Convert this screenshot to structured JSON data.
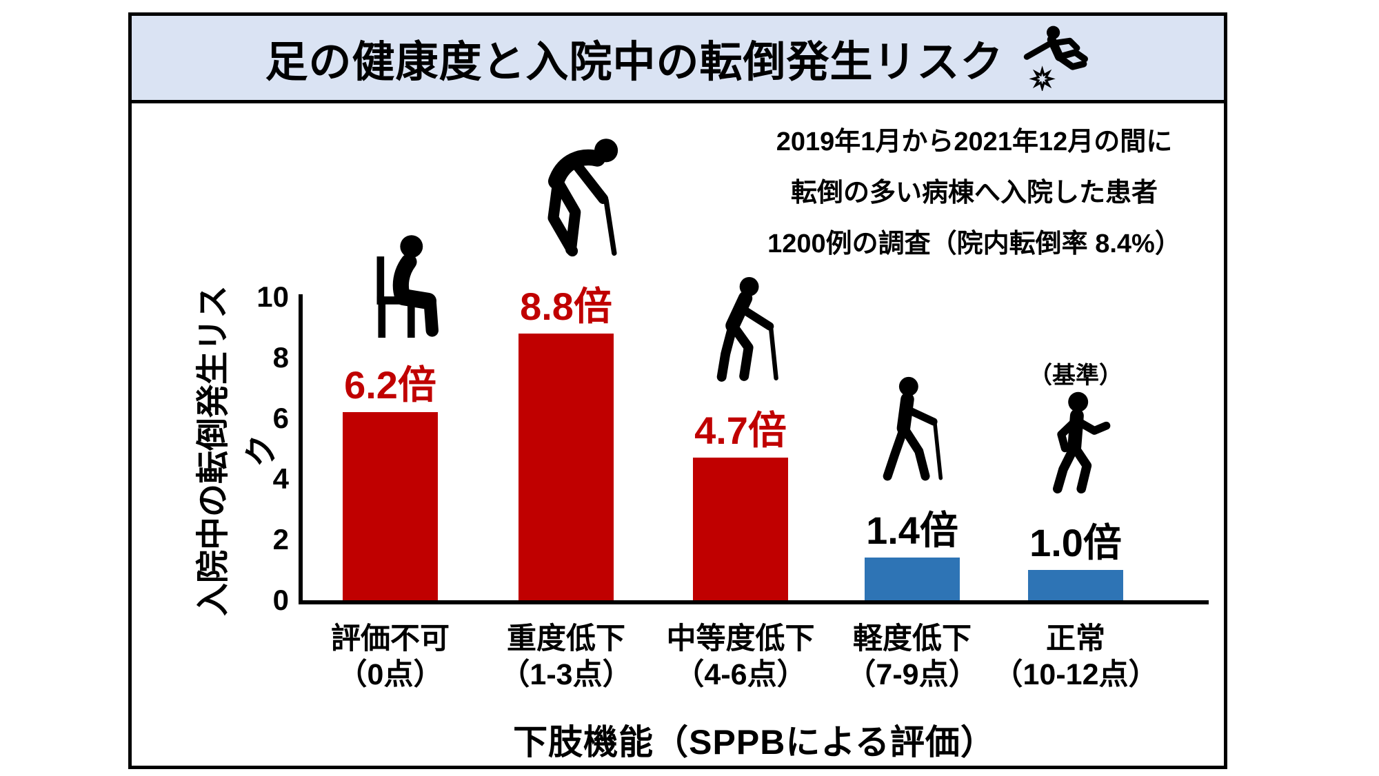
{
  "title": {
    "text": "足の健康度と入院中の転倒発生リスク"
  },
  "annotation": {
    "line1": "2019年1月から2021年12月の間に",
    "line2": "転倒の多い病棟へ入院した患者",
    "line3": "1200例の調査（院内転倒率 8.4%）"
  },
  "chart_data": {
    "type": "bar",
    "title": "足の健康度と入院中の転倒発生リスク",
    "xlabel": "下肢機能（SPPBによる評価）",
    "ylabel": "入院中の転倒発生リスク",
    "ylim": [
      0,
      10
    ],
    "yticks": [
      0,
      2,
      4,
      6,
      8,
      10
    ],
    "grid": false,
    "legend": false,
    "categories": [
      "評価不可",
      "重度低下",
      "中等度低下",
      "軽度低下",
      "正常"
    ],
    "category_sublabels": [
      "（0点）",
      "（1-3点）",
      "（4-6点）",
      "（7-9点）",
      "（10-12点）"
    ],
    "values": [
      6.2,
      8.8,
      4.7,
      1.4,
      1.0
    ],
    "value_labels": [
      "6.2倍",
      "8.8倍",
      "4.7倍",
      "1.4倍",
      "1.0倍"
    ],
    "bar_colors": [
      "#c00000",
      "#c00000",
      "#c00000",
      "#2e74b5",
      "#2e74b5"
    ],
    "value_label_colors": [
      "#c00000",
      "#c00000",
      "#c00000",
      "#000000",
      "#000000"
    ],
    "icons": [
      "person-sitting-chair-icon",
      "person-bent-with-cane-icon",
      "person-stooped-with-cane-icon",
      "person-with-walking-stick-icon",
      "person-walking-icon"
    ],
    "reference_note": "（基準）",
    "reference_index": 4
  },
  "colors": {
    "red": "#c00000",
    "blue": "#2e74b5",
    "title_bg": "#dae3f3",
    "border": "#000000"
  }
}
